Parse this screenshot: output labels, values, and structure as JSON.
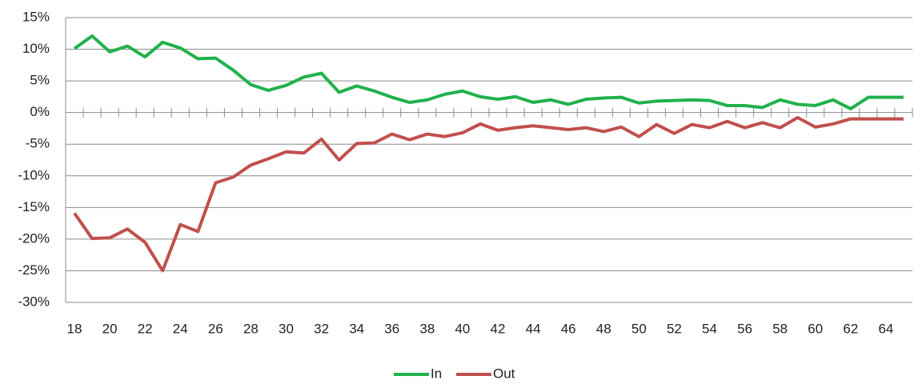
{
  "chart_data": {
    "type": "line",
    "categories": [
      "18",
      null,
      "20",
      null,
      "22",
      null,
      "24",
      null,
      "26",
      null,
      "28",
      null,
      "30",
      null,
      "32",
      null,
      "34",
      null,
      "36",
      null,
      "38",
      null,
      "40",
      null,
      "42",
      null,
      "44",
      null,
      "46",
      null,
      "48",
      null,
      "50",
      null,
      "52",
      null,
      "54",
      null,
      "56",
      null,
      "58",
      null,
      "60",
      null,
      "62",
      null,
      "64",
      null
    ],
    "series": [
      {
        "name": "In",
        "color": "#22b14c",
        "values": [
          10.1,
          12.1,
          9.6,
          10.5,
          8.8,
          11.1,
          10.2,
          8.5,
          8.6,
          6.7,
          4.4,
          3.5,
          4.3,
          5.6,
          6.2,
          3.2,
          4.2,
          3.4,
          2.4,
          1.6,
          2.0,
          2.9,
          3.4,
          2.5,
          2.1,
          2.5,
          1.6,
          2.0,
          1.3,
          2.1,
          2.3,
          2.4,
          1.5,
          1.8,
          1.9,
          2.0,
          1.9,
          1.1,
          1.1,
          0.8,
          2.0,
          1.3,
          1.1,
          2.0,
          0.6,
          2.4,
          2.4,
          2.4
        ]
      },
      {
        "name": "Out",
        "color": "#c0504d",
        "values": [
          -15.9,
          -19.9,
          -19.8,
          -18.4,
          -20.5,
          -25.0,
          -17.7,
          -18.8,
          -11.1,
          -10.2,
          -8.3,
          -7.3,
          -6.2,
          -6.4,
          -4.2,
          -7.5,
          -4.9,
          -4.8,
          -3.4,
          -4.3,
          -3.4,
          -3.8,
          -3.2,
          -1.8,
          -2.8,
          -2.4,
          -2.1,
          -2.4,
          -2.7,
          -2.4,
          -3.0,
          -2.3,
          -3.8,
          -1.9,
          -3.3,
          -1.9,
          -2.4,
          -1.4,
          -2.4,
          -1.6,
          -2.4,
          -0.8,
          -2.3,
          -1.8,
          -1.0,
          -1.0,
          -1.0,
          -1.0
        ]
      }
    ],
    "ylim": [
      -30,
      15
    ],
    "yticks": [
      {
        "value": -30,
        "label": "-30%"
      },
      {
        "value": -25,
        "label": "-25%"
      },
      {
        "value": -20,
        "label": "-20%"
      },
      {
        "value": -15,
        "label": "-15%"
      },
      {
        "value": -10,
        "label": "-10%"
      },
      {
        "value": -5,
        "label": "-5%"
      },
      {
        "value": 0,
        "label": "0%"
      },
      {
        "value": 5,
        "label": "5%"
      },
      {
        "value": 10,
        "label": "10%"
      },
      {
        "value": 15,
        "label": "15%"
      }
    ],
    "grid": true,
    "legend": "bottom"
  }
}
